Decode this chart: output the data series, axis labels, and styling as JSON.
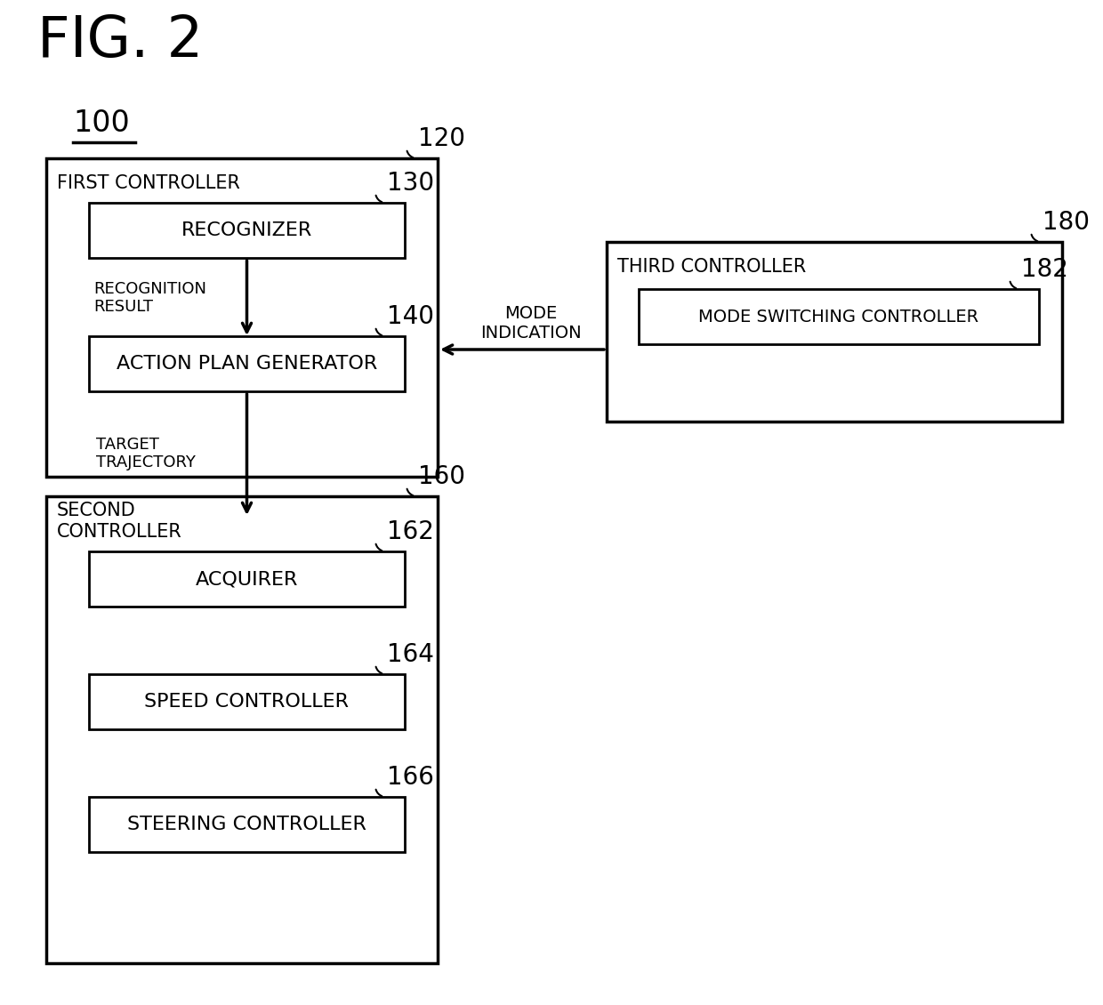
{
  "fig_title": "FIG. 2",
  "bg_color": "#ffffff",
  "label_100": "100",
  "label_120": "120",
  "label_130": "130",
  "label_140": "140",
  "label_160": "160",
  "label_162": "162",
  "label_164": "164",
  "label_166": "166",
  "label_180": "180",
  "label_182": "182",
  "text_first_controller": "FIRST CONTROLLER",
  "text_recognizer": "RECOGNIZER",
  "text_recognition_result": "RECOGNITION\nRESULT",
  "text_action_plan": "ACTION PLAN GENERATOR",
  "text_second_controller": "SECOND\nCONTROLLER",
  "text_target_trajectory": "TARGET\nTRAJECTORY",
  "text_acquirer": "ACQUIRER",
  "text_speed_controller": "SPEED CONTROLLER",
  "text_steering_controller": "STEERING CONTROLLER",
  "text_third_controller": "THIRD CONTROLLER",
  "text_mode_switching": "MODE SWITCHING CONTROLLER",
  "text_mode_indication": "MODE\nINDICATION"
}
